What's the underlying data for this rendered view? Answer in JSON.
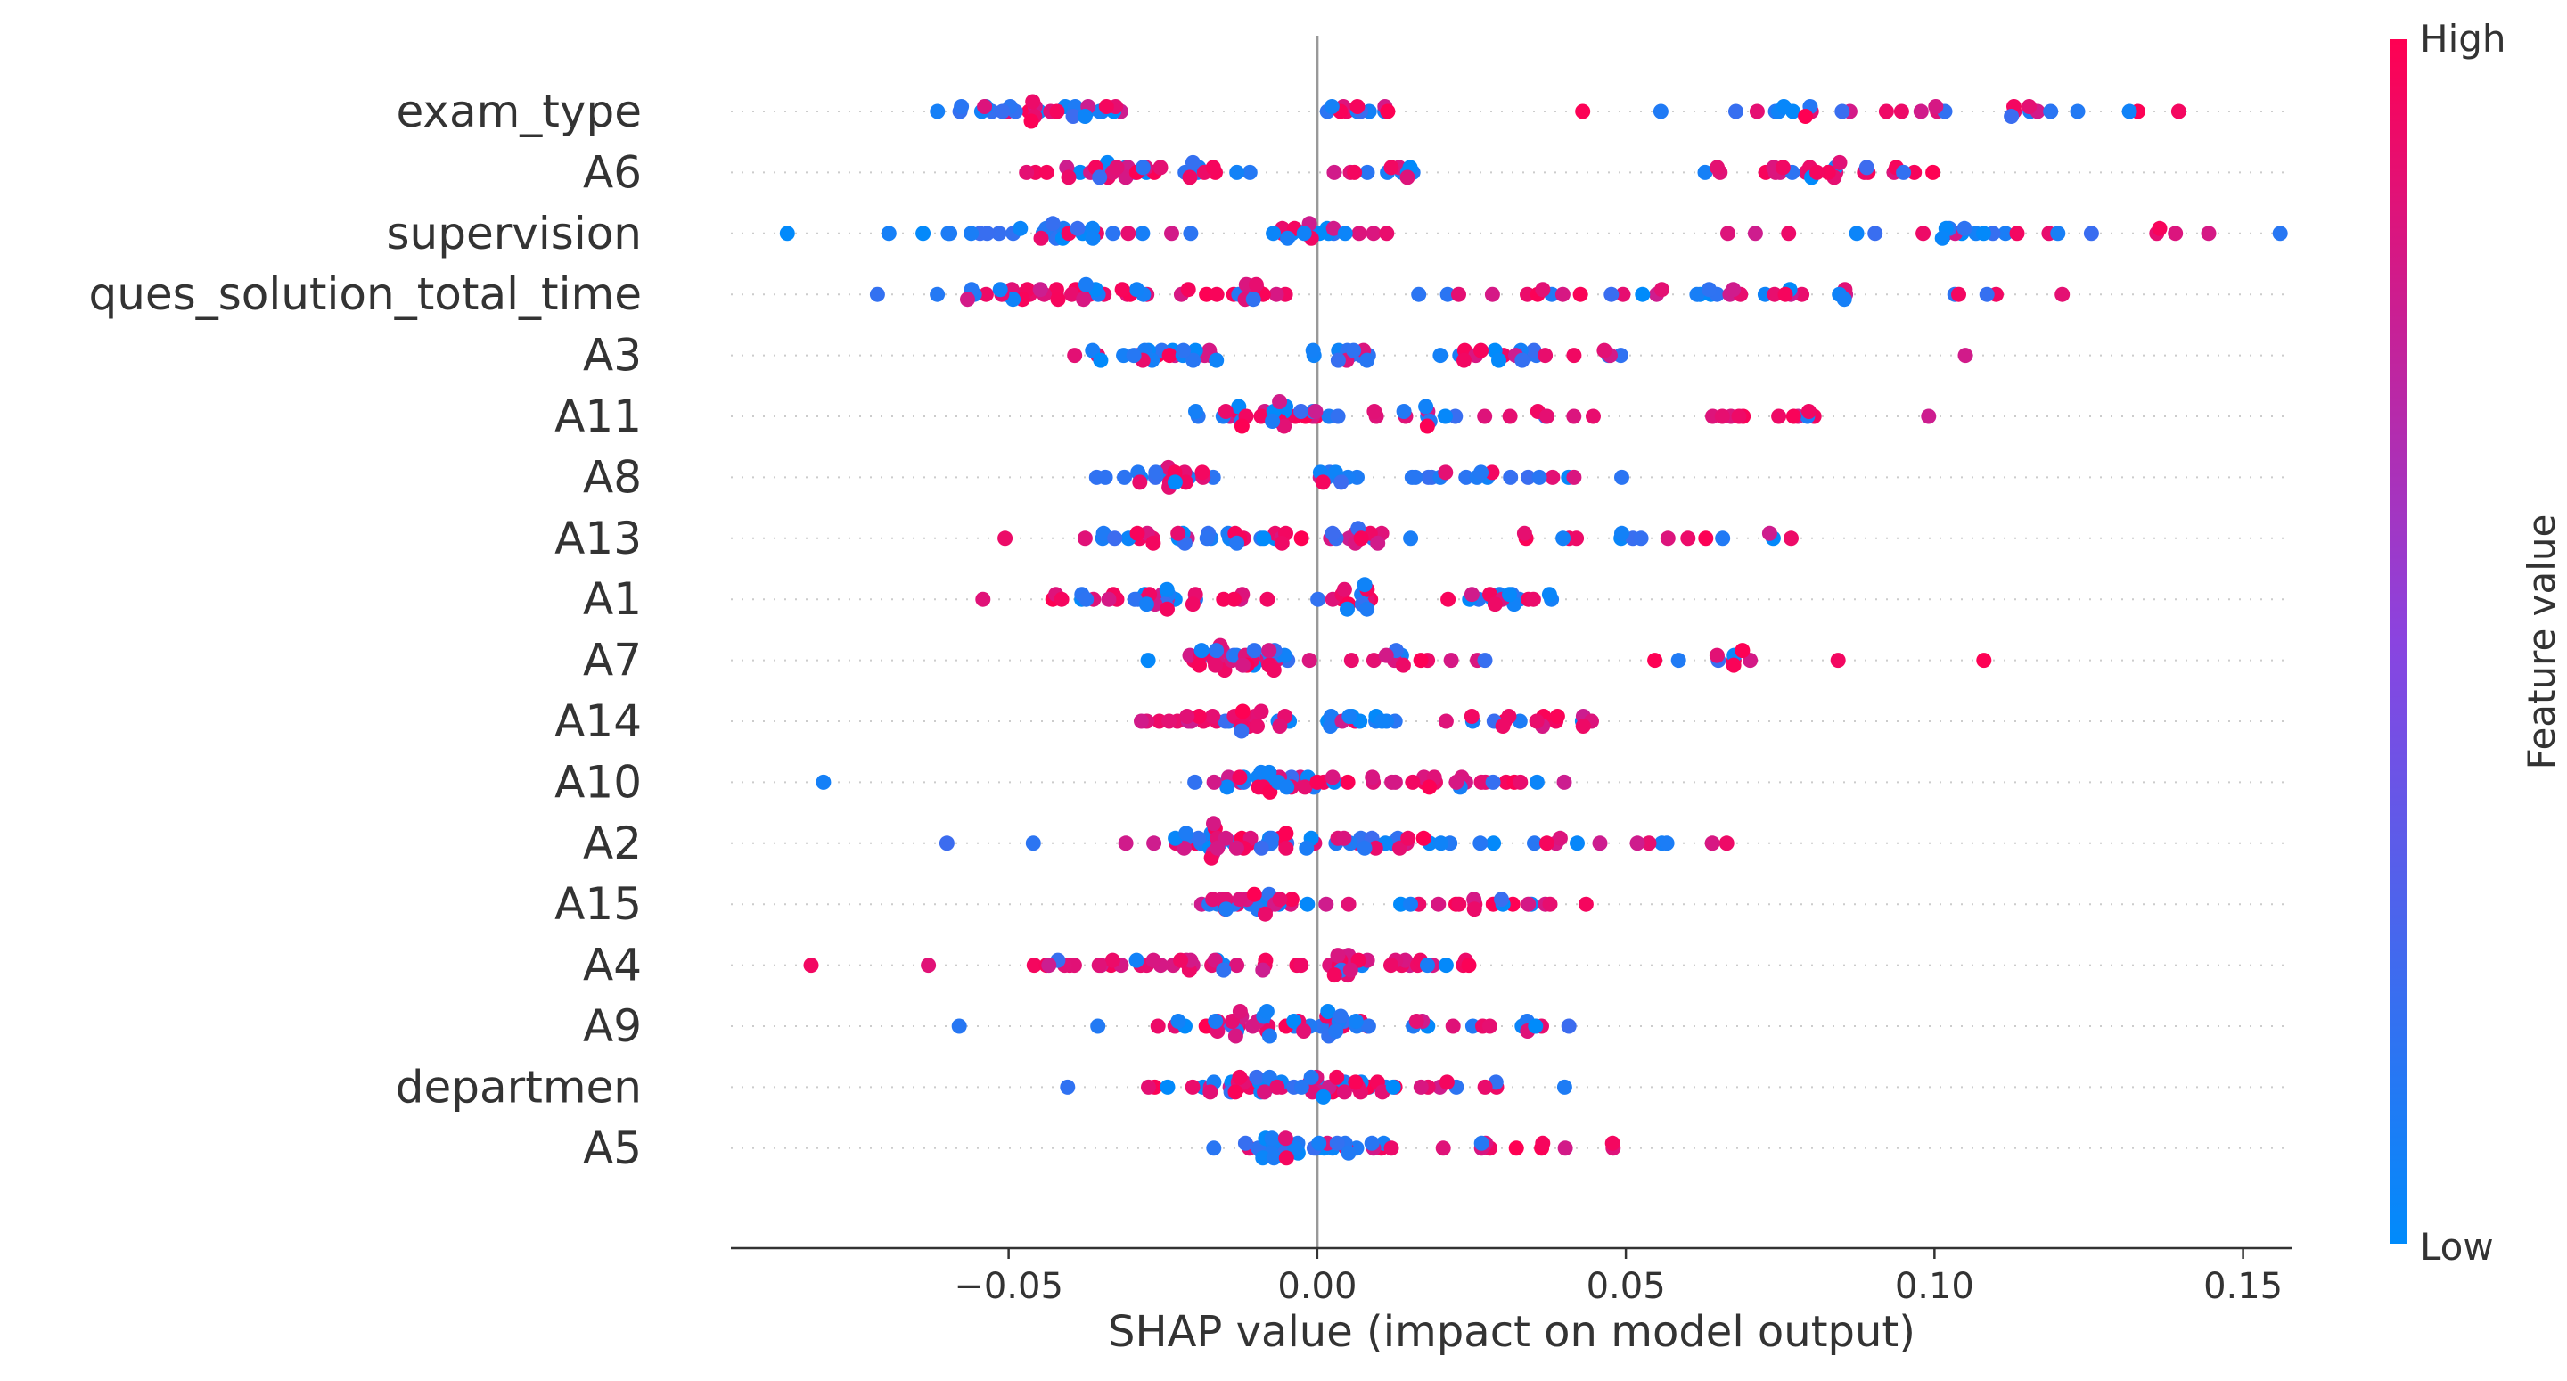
{
  "chart_data": {
    "type": "scatter",
    "subtype": "shap-beeswarm",
    "title": "",
    "xlabel": "SHAP value (impact on model output)",
    "ylabel": "",
    "xlim": [
      -0.095,
      0.158
    ],
    "xticks": [
      -0.05,
      0.0,
      0.05,
      0.1,
      0.15
    ],
    "xtick_labels": [
      "−0.05",
      "0.00",
      "0.05",
      "0.10",
      "0.15"
    ],
    "zero_line": 0.0,
    "grid": false,
    "colorbar": {
      "title": "Feature value",
      "high_label": "High",
      "low_label": "Low",
      "high_color": "#ff0052",
      "mid_color": "#8a44e0",
      "low_color": "#008bfb"
    },
    "features": [
      {
        "name": "exam_type",
        "clusters": [
          [
            -0.043,
            0.01,
            34,
            0.5
          ],
          [
            0.007,
            0.003,
            12,
            0.5
          ],
          [
            0.095,
            0.028,
            30,
            0.55
          ]
        ]
      },
      {
        "name": "A6",
        "clusters": [
          [
            -0.03,
            0.01,
            38,
            0.55
          ],
          [
            0.011,
            0.004,
            12,
            0.65
          ],
          [
            0.078,
            0.016,
            26,
            0.8
          ]
        ]
      },
      {
        "name": "supervision",
        "clusters": [
          [
            -0.042,
            0.014,
            32,
            0.35
          ],
          [
            -0.001,
            0.005,
            20,
            0.3
          ],
          [
            0.105,
            0.021,
            26,
            0.5
          ]
        ]
      },
      {
        "name": "ques_solution_total_time",
        "clusters": [
          [
            -0.04,
            0.012,
            40,
            0.65
          ],
          [
            -0.01,
            0.004,
            14,
            0.85
          ],
          [
            0.06,
            0.03,
            38,
            0.5
          ]
        ]
      },
      {
        "name": "A3",
        "clusters": [
          [
            -0.025,
            0.008,
            26,
            0.5
          ],
          [
            0.005,
            0.003,
            14,
            0.2
          ],
          [
            0.035,
            0.014,
            22,
            0.35
          ],
          [
            0.105,
            0.0,
            1,
            1.0
          ]
        ]
      },
      {
        "name": "A11",
        "clusters": [
          [
            -0.01,
            0.007,
            32,
            0.6
          ],
          [
            0.02,
            0.007,
            12,
            0.45
          ],
          [
            0.055,
            0.02,
            18,
            0.8
          ]
        ]
      },
      {
        "name": "A8",
        "clusters": [
          [
            -0.025,
            0.007,
            22,
            0.5
          ],
          [
            0.003,
            0.002,
            10,
            0.3
          ],
          [
            0.03,
            0.009,
            18,
            0.2
          ]
        ]
      },
      {
        "name": "A13",
        "clusters": [
          [
            -0.018,
            0.009,
            32,
            0.45
          ],
          [
            0.005,
            0.005,
            16,
            0.55
          ],
          [
            0.055,
            0.014,
            16,
            0.55
          ]
        ]
      },
      {
        "name": "A1",
        "clusters": [
          [
            -0.03,
            0.012,
            34,
            0.75
          ],
          [
            0.005,
            0.003,
            14,
            0.3
          ],
          [
            0.03,
            0.01,
            18,
            0.5
          ]
        ]
      },
      {
        "name": "A7",
        "clusters": [
          [
            -0.012,
            0.006,
            40,
            0.7
          ],
          [
            0.012,
            0.009,
            14,
            0.85
          ],
          [
            0.065,
            0.012,
            10,
            0.85
          ],
          [
            0.108,
            0.0,
            1,
            1.0
          ]
        ]
      },
      {
        "name": "A14",
        "clusters": [
          [
            -0.012,
            0.007,
            34,
            0.65
          ],
          [
            0.006,
            0.004,
            12,
            0.35
          ],
          [
            0.032,
            0.012,
            18,
            0.75
          ]
        ]
      },
      {
        "name": "A10",
        "clusters": [
          [
            -0.01,
            0.006,
            34,
            0.5
          ],
          [
            0.02,
            0.01,
            24,
            0.7
          ],
          [
            -0.08,
            0.0,
            1,
            0.0
          ]
        ]
      },
      {
        "name": "A2",
        "clusters": [
          [
            -0.015,
            0.008,
            40,
            0.65
          ],
          [
            0.008,
            0.007,
            24,
            0.45
          ],
          [
            0.04,
            0.016,
            14,
            0.65
          ],
          [
            -0.06,
            0.0,
            1,
            0.0
          ],
          [
            -0.046,
            0.0,
            1,
            0.0
          ]
        ]
      },
      {
        "name": "A15",
        "clusters": [
          [
            -0.01,
            0.006,
            28,
            0.6
          ],
          [
            0.025,
            0.01,
            20,
            0.7
          ]
        ]
      },
      {
        "name": "A4",
        "clusters": [
          [
            -0.025,
            0.011,
            34,
            0.85
          ],
          [
            0.004,
            0.003,
            14,
            0.8
          ],
          [
            0.02,
            0.008,
            16,
            0.8
          ],
          [
            -0.082,
            0.0,
            1,
            1.0
          ],
          [
            -0.063,
            0.0,
            1,
            1.0
          ]
        ]
      },
      {
        "name": "A9",
        "clusters": [
          [
            -0.012,
            0.01,
            38,
            0.65
          ],
          [
            0.002,
            0.004,
            12,
            0.5
          ],
          [
            0.022,
            0.01,
            16,
            0.45
          ],
          [
            -0.058,
            0.0,
            1,
            0.0
          ]
        ]
      },
      {
        "name": "departmen",
        "clusters": [
          [
            -0.01,
            0.009,
            38,
            0.45
          ],
          [
            0.003,
            0.005,
            16,
            0.5
          ],
          [
            0.022,
            0.01,
            14,
            0.8
          ]
        ]
      },
      {
        "name": "A5",
        "clusters": [
          [
            -0.006,
            0.005,
            28,
            0.25
          ],
          [
            0.005,
            0.004,
            10,
            0.3
          ],
          [
            0.03,
            0.01,
            12,
            0.7
          ]
        ]
      }
    ]
  }
}
